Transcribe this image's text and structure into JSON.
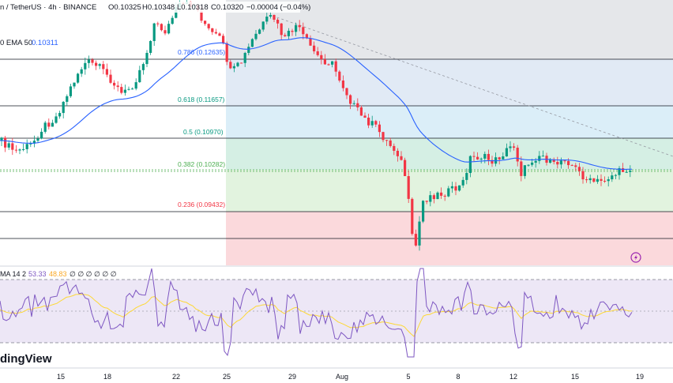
{
  "header": {
    "symbol": "n / TetherUS · 4h · BINANCE",
    "open": "O0.10325",
    "high": "H0.10348",
    "low": "L0.10318",
    "close": "C0.10320",
    "change": "−0.00004 (−0.04%)",
    "ema_label": "0 EMA 50",
    "ema_value": "0.10311"
  },
  "fib_levels": [
    {
      "label": "0.786 (0.12635)",
      "color": "#2962ff",
      "fill": "#e1eaf5"
    },
    {
      "label": "0.618 (0.11657)",
      "color": "#089981",
      "fill": "#dbeef8"
    },
    {
      "label": "0.5 (0.10970)",
      "color": "#089981",
      "fill": "#d5efe4"
    },
    {
      "label": "0.382 (0.10282)",
      "color": "#4caf50",
      "fill": "#e2f3df"
    },
    {
      "label": "0.236 (0.09432)",
      "color": "#f23645",
      "fill": "#fbd9dc"
    }
  ],
  "rsi": {
    "label": "MA 14 2",
    "value": "53.33",
    "ma_value": "48.83",
    "extra": "∅ ∅ ∅ ∅ ∅ ∅"
  },
  "brand": "dingView",
  "x_ticks": [
    "15",
    "18",
    "22",
    "25",
    "29",
    "Aug",
    "5",
    "8",
    "12",
    "15",
    "19"
  ],
  "colors": {
    "up": "#089981",
    "down": "#f23645",
    "ema": "#2962ff",
    "rsi_line": "#7e57c2",
    "rsi_ma": "#fdd835",
    "rsi_band": "#ede7f6"
  },
  "chart_data": {
    "type": "candlestick",
    "timeframe": "4h",
    "indicators": [
      "EMA 50",
      "RSI 14"
    ],
    "fib_retracement": [
      0.786,
      0.618,
      0.5,
      0.382,
      0.236
    ],
    "fib_prices": [
      0.12635,
      0.11657,
      0.1097,
      0.10282,
      0.09432
    ],
    "x_ticks": [
      "15",
      "18",
      "22",
      "25",
      "29",
      "Aug",
      "5",
      "8",
      "12",
      "15",
      "19"
    ],
    "last_close": 0.1032,
    "ema50_last": 0.10311,
    "rsi_last": 53.33,
    "rsi_ma_last": 48.83
  }
}
